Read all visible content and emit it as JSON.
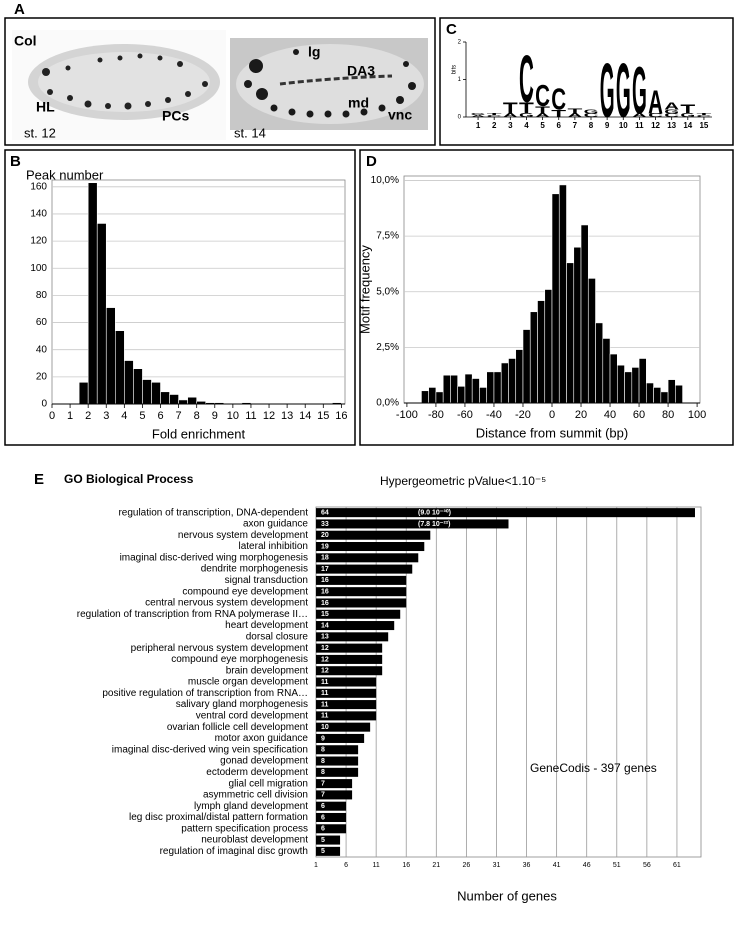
{
  "panel_letters": [
    "A",
    "B",
    "C",
    "D",
    "E"
  ],
  "panel_a": {
    "left_labels": [
      "Col",
      "HL",
      "PCs",
      "st. 12"
    ],
    "right_labels": [
      "lg",
      "DA3",
      "md",
      "vnc",
      "st. 14"
    ]
  },
  "chart_data": [
    {
      "type": "logo",
      "ylabel": "bits",
      "ylim": [
        0,
        2
      ],
      "yticks": [
        0,
        1,
        2
      ],
      "xticks": [
        1,
        2,
        3,
        4,
        5,
        6,
        7,
        8,
        9,
        10,
        11,
        12,
        13,
        14,
        15
      ],
      "colors": {
        "A": "#d62020",
        "C": "#2424c8",
        "G": "#f4a300",
        "T": "#1f9e2a"
      },
      "stacks": [
        {
          "letters": [
            "A",
            "G"
          ],
          "values": [
            0.05,
            0.05
          ]
        },
        {
          "letters": [
            "C",
            "T"
          ],
          "values": [
            0.05,
            0.05
          ]
        },
        {
          "letters": [
            "A",
            "T"
          ],
          "values": [
            0.1,
            0.3
          ]
        },
        {
          "letters": [
            "G",
            "T",
            "C"
          ],
          "values": [
            0.1,
            0.3,
            1.3
          ]
        },
        {
          "letters": [
            "A",
            "T",
            "C"
          ],
          "values": [
            0.1,
            0.2,
            0.6
          ]
        },
        {
          "letters": [
            "T",
            "C"
          ],
          "values": [
            0.2,
            0.6
          ]
        },
        {
          "letters": [
            "A",
            "T"
          ],
          "values": [
            0.1,
            0.15
          ]
        },
        {
          "letters": [
            "C",
            "G"
          ],
          "values": [
            0.1,
            0.1
          ]
        },
        {
          "letters": [
            "G"
          ],
          "values": [
            1.5
          ]
        },
        {
          "letters": [
            "G"
          ],
          "values": [
            1.5
          ]
        },
        {
          "letters": [
            "A",
            "G"
          ],
          "values": [
            0.1,
            1.3
          ]
        },
        {
          "letters": [
            "C",
            "A"
          ],
          "values": [
            0.1,
            0.65
          ]
        },
        {
          "letters": [
            "C",
            "G",
            "A"
          ],
          "values": [
            0.1,
            0.1,
            0.2
          ]
        },
        {
          "letters": [
            "G",
            "T"
          ],
          "values": [
            0.1,
            0.25
          ]
        },
        {
          "letters": [
            "C",
            "T"
          ],
          "values": [
            0.05,
            0.05
          ]
        }
      ]
    },
    {
      "type": "histogram",
      "ylabel": "Peak number",
      "xlabel": "Fold enrichment",
      "color": "#000000",
      "grid": true,
      "bins": [
        1.5,
        2,
        2.5,
        3,
        3.5,
        4,
        4.5,
        5,
        5.5,
        6,
        6.5,
        7,
        7.5,
        8,
        8.5,
        9,
        9.5,
        10,
        10.5,
        11,
        11.5,
        12,
        12.5,
        13,
        13.5,
        14,
        14.5,
        15,
        15.5,
        16
      ],
      "values": [
        16,
        163,
        133,
        71,
        54,
        32,
        26,
        18,
        16,
        9,
        7,
        3,
        5,
        2,
        1,
        1,
        0,
        0,
        1,
        0,
        0,
        0,
        0,
        0,
        0,
        0,
        0,
        0,
        1
      ],
      "xlim": [
        0,
        16.2
      ],
      "ylim": [
        0,
        165
      ],
      "xticks": [
        0,
        1,
        2,
        3,
        4,
        5,
        6,
        7,
        8,
        9,
        10,
        11,
        12,
        13,
        14,
        15,
        16
      ],
      "yticks": [
        0,
        20,
        40,
        60,
        80,
        100,
        120,
        140,
        160
      ]
    },
    {
      "type": "histogram",
      "ylabel": "Motif frequency",
      "xlabel": "Distance from summit (bp)",
      "color": "#000000",
      "grid": true,
      "bins": [
        -90,
        -85,
        -80,
        -75,
        -70,
        -65,
        -60,
        -55,
        -50,
        -45,
        -40,
        -35,
        -30,
        -25,
        -20,
        -15,
        -10,
        -5,
        0,
        5,
        10,
        15,
        20,
        25,
        30,
        35,
        40,
        45,
        50,
        55,
        60,
        65,
        70,
        75,
        80,
        85,
        90
      ],
      "values": [
        0.55,
        0.7,
        0.5,
        1.25,
        1.25,
        0.75,
        1.3,
        1.1,
        0.7,
        1.4,
        1.4,
        1.8,
        2.0,
        2.4,
        3.3,
        4.1,
        4.6,
        5.1,
        9.4,
        9.8,
        6.3,
        7.0,
        8.0,
        5.6,
        3.6,
        2.9,
        2.2,
        1.7,
        1.4,
        1.6,
        2.0,
        0.9,
        0.7,
        0.5,
        1.05,
        0.8
      ],
      "xlim": [
        -102,
        102
      ],
      "ylim": [
        0,
        10.2
      ],
      "xticks": [
        -100,
        -80,
        -60,
        -40,
        -20,
        0,
        20,
        40,
        60,
        80,
        100
      ],
      "yticks": [
        {
          "value": 0,
          "label": "0,0%"
        },
        {
          "value": 2.5,
          "label": "2,5%"
        },
        {
          "value": 5,
          "label": "5,0%"
        },
        {
          "value": 7.5,
          "label": "7,5%"
        },
        {
          "value": 10,
          "label": "10,0%"
        }
      ]
    },
    {
      "type": "hbar",
      "title": "GO Biological Process",
      "subtitle": "Hypergeometric pValue<1.10⁻⁵",
      "xlabel": "Number of genes",
      "note": "GeneCodis - 397 genes",
      "annotations": [
        "(9.0 10⁻³⁰)",
        "(7.8 10⁻²²)"
      ],
      "color": "#000000",
      "grid": true,
      "categories": [
        "regulation of transcription, DNA-dependent",
        "axon guidance",
        "nervous system development",
        "lateral inhibition",
        "imaginal disc-derived wing morphogenesis",
        "dendrite morphogenesis",
        "signal transduction",
        "compound eye development",
        "central nervous system development",
        "regulation of transcription from RNA polymerase II…",
        "heart development",
        "dorsal closure",
        "peripheral nervous system development",
        "compound eye morphogenesis",
        "brain development",
        "muscle organ development",
        "positive regulation of transcription from RNA…",
        "salivary gland morphogenesis",
        "ventral cord development",
        "ovarian follicle cell development",
        "motor axon guidance",
        "imaginal disc-derived wing vein specification",
        "gonad development",
        "ectoderm development",
        "glial cell migration",
        "asymmetric cell division",
        "lymph gland development",
        "leg disc proximal/distal pattern formation",
        "pattern specification process",
        "neuroblast development",
        "regulation of imaginal disc growth"
      ],
      "values": [
        64,
        33,
        20,
        19,
        18,
        17,
        16,
        16,
        16,
        15,
        14,
        13,
        12,
        12,
        12,
        11,
        11,
        11,
        11,
        10,
        9,
        8,
        8,
        8,
        7,
        7,
        6,
        6,
        6,
        5,
        5
      ],
      "xlim": [
        1,
        65
      ],
      "xticks": [
        1,
        6,
        11,
        16,
        21,
        26,
        31,
        36,
        41,
        46,
        51,
        56,
        61
      ]
    }
  ]
}
